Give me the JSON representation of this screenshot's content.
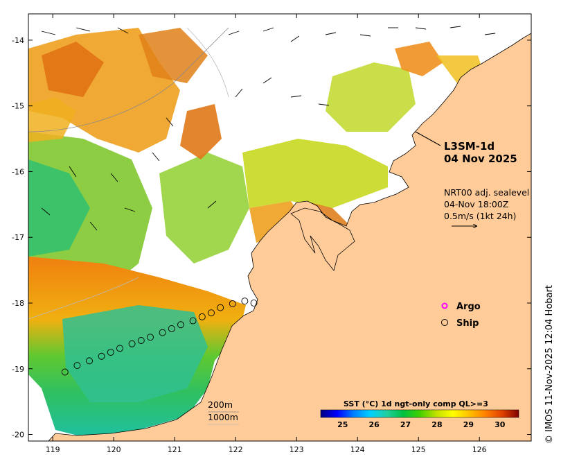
{
  "map": {
    "lon_ticks": [
      "119",
      "120",
      "121",
      "122",
      "123",
      "124",
      "125",
      "126"
    ],
    "lat_ticks": [
      "-14",
      "-15",
      "-16",
      "-17",
      "-18",
      "-19",
      "-20"
    ],
    "product": "L3SM-1d",
    "date": "04 Nov 2025",
    "current_source": "NRT00 adj. sealevel",
    "current_time": "04-Nov 18:00Z",
    "current_scale": "0.5m/s (1kt 24h)",
    "legend": {
      "argo_label": "Argo",
      "ship_label": "Ship",
      "argo_color": "#ff00ff",
      "ship_color": "#000000"
    },
    "isobaths": {
      "shallow": "200m",
      "deep": "1000m"
    },
    "colorbar": {
      "title": "SST (°C) 1d ngt-only comp QL>=3",
      "ticks": [
        "25",
        "26",
        "27",
        "28",
        "29",
        "30"
      ],
      "colors": [
        "#00007f",
        "#0000ff",
        "#007fff",
        "#00cfff",
        "#20d0a0",
        "#00c040",
        "#40d000",
        "#c0e000",
        "#ffff00",
        "#ffc000",
        "#ff8000",
        "#e04000",
        "#7f0000"
      ]
    },
    "credit": "© IMOS 11-Nov-2025 12:04 Hobart",
    "land_color": "#ffcb99",
    "ship_track": [
      {
        "lon": 119.2,
        "lat": -19.05
      },
      {
        "lon": 119.4,
        "lat": -18.95
      },
      {
        "lon": 119.6,
        "lat": -18.88
      },
      {
        "lon": 119.8,
        "lat": -18.81
      },
      {
        "lon": 119.95,
        "lat": -18.75
      },
      {
        "lon": 120.1,
        "lat": -18.69
      },
      {
        "lon": 120.3,
        "lat": -18.62
      },
      {
        "lon": 120.45,
        "lat": -18.57
      },
      {
        "lon": 120.6,
        "lat": -18.52
      },
      {
        "lon": 120.8,
        "lat": -18.45
      },
      {
        "lon": 120.95,
        "lat": -18.39
      },
      {
        "lon": 121.1,
        "lat": -18.33
      },
      {
        "lon": 121.3,
        "lat": -18.27
      },
      {
        "lon": 121.45,
        "lat": -18.21
      },
      {
        "lon": 121.6,
        "lat": -18.15
      },
      {
        "lon": 121.75,
        "lat": -18.07
      },
      {
        "lon": 121.95,
        "lat": -18.01
      },
      {
        "lon": 122.15,
        "lat": -17.97
      },
      {
        "lon": 122.3,
        "lat": -18.0
      }
    ]
  }
}
